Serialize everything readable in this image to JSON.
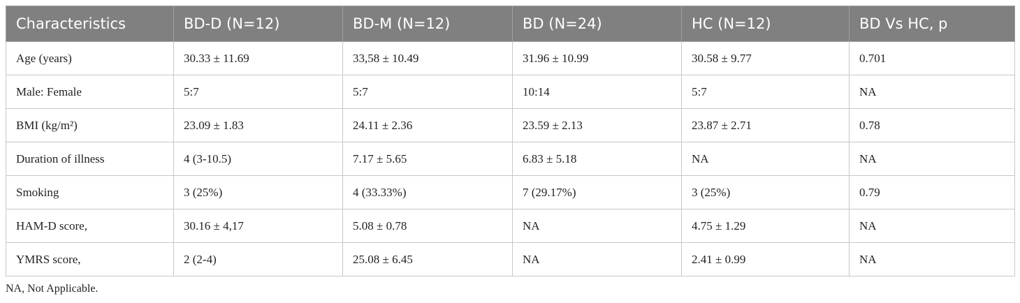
{
  "table": {
    "header": [
      "Characteristics",
      "BD-D (N=12)",
      "BD-M (N=12)",
      "BD (N=24)",
      "HC (N=12)",
      "BD Vs HC, p"
    ],
    "rows": [
      [
        "Age (years)",
        "30.33 ± 11.69",
        "33,58 ± 10.49",
        "31.96 ± 10.99",
        "30.58 ± 9.77",
        "0.701"
      ],
      [
        "Male: Female",
        "5:7",
        "5:7",
        "10:14",
        "5:7",
        "NA"
      ],
      [
        "BMI (kg/m²)",
        "23.09 ± 1.83",
        "24.11 ± 2.36",
        "23.59 ± 2.13",
        "23.87 ± 2.71",
        "0.78"
      ],
      [
        "Duration of illness",
        "4 (3-10.5)",
        "7.17 ± 5.65",
        "6.83 ± 5.18",
        "NA",
        "NA"
      ],
      [
        "Smoking",
        "3 (25%)",
        "4 (33.33%)",
        "7 (29.17%)",
        "3 (25%)",
        "0.79"
      ],
      [
        "HAM-D score,",
        "30.16 ± 4,17",
        "5.08 ± 0.78",
        "NA",
        "4.75 ± 1.29",
        "NA"
      ],
      [
        "YMRS score,",
        "2 (2-4)",
        "25.08 ± 6.45",
        "NA",
        "2.41 ± 0.99",
        "NA"
      ]
    ]
  },
  "footnote": "NA, Not Applicable."
}
